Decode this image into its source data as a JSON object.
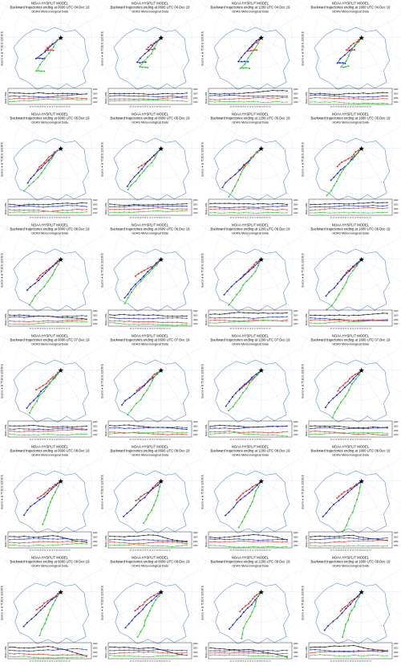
{
  "header_line1": "NOAA HYSPLIT MODEL",
  "header_line3": "GDAS Meteorological Data",
  "source_label": "Source ★ at 75.10 E 123.30 E",
  "meters_label": "Meters MSL",
  "alt_ticks": [
    "4000",
    "3000",
    "2000",
    "1000"
  ],
  "time_ticks": "18 15 12 09 06 03 00 21 18 15 12 09 06 03 00 21 18",
  "colors": {
    "map": "#6f93cf",
    "track_red": "#e0392b",
    "track_blue": "#1f2fc4",
    "track_green": "#39c43a",
    "track_black": "#111111"
  },
  "panels": [
    {
      "title": "Backward trajectories ending at 0000 UTC 04 Dec 19"
    },
    {
      "title": "Backward trajectories ending at 0600 UTC 04 Dec 19"
    },
    {
      "title": "Backward trajectories ending at 1200 UTC 04 Dec 19"
    },
    {
      "title": "Backward trajectories ending at 1800 UTC 04 Dec 19"
    },
    {
      "title": "Backward trajectories ending at 0000 UTC 05 Dec 19"
    },
    {
      "title": "Backward trajectories ending at 0600 UTC 05 Dec 19"
    },
    {
      "title": "Backward trajectories ending at 1200 UTC 05 Dec 19"
    },
    {
      "title": "Backward trajectories ending at 1800 UTC 05 Dec 19"
    },
    {
      "title": "Backward trajectories ending at 0000 UTC 06 Dec 19"
    },
    {
      "title": "Backward trajectories ending at 0600 UTC 06 Dec 19"
    },
    {
      "title": "Backward trajectories ending at 1200 UTC 06 Dec 19"
    },
    {
      "title": "Backward trajectories ending at 1800 UTC 06 Dec 19"
    },
    {
      "title": "Backward trajectories ending at 0000 UTC 07 Dec 19"
    },
    {
      "title": "Backward trajectories ending at 0600 UTC 07 Dec 19"
    },
    {
      "title": "Backward trajectories ending at 1200 UTC 07 Dec 19"
    },
    {
      "title": "Backward trajectories ending at 1800 UTC 07 Dec 19"
    },
    {
      "title": "Backward trajectories ending at 0000 UTC 08 Dec 19"
    },
    {
      "title": "Backward trajectories ending at 0600 UTC 08 Dec 19"
    },
    {
      "title": "Backward trajectories ending at 1200 UTC 08 Dec 19"
    },
    {
      "title": "Backward trajectories ending at 1800 UTC 08 Dec 19"
    },
    {
      "title": "Backward trajectories ending at 0000 UTC 09 Dec 19"
    },
    {
      "title": "Backward trajectories ending at 0600 UTC 09 Dec 19"
    },
    {
      "title": "Backward trajectories ending at 1200 UTC 09 Dec 19"
    },
    {
      "title": "Backward trajectories ending at 1800 UTC 09 Dec 19"
    }
  ]
}
